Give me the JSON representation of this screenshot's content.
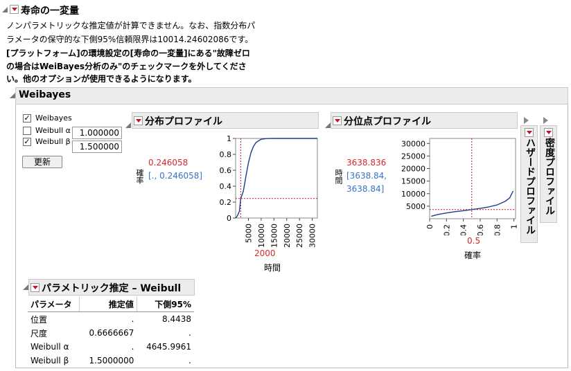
{
  "report": {
    "title": "寿命の一変量",
    "message_lines": [
      "ノンパラメトリックな推定値が計算できません。なお、指数分布パ",
      "ラメータの保守的な下側95%信頼限界は10014.24602086です。",
      "[プラットフォーム]の環境設定の[寿命の一変量]にある\"故障ゼロ",
      "の場合はWeiBayes分析のみ\"のチェックマークを外してくださ",
      "い。他のオプションが使用できるようになります。"
    ]
  },
  "weibayes": {
    "title": "Weibayes",
    "checkbox_weibayes": "Weibayes",
    "alpha_label": "Weibull α",
    "alpha_value": "1.000000",
    "beta_label": "Weibull β",
    "beta_value": "1.500000",
    "update_button": "更新"
  },
  "dist_profile": {
    "title": "分布プロファイル",
    "value": "0.246058",
    "interval": "[., 0.246058]",
    "ylabel": "確率",
    "xlabel": "時間",
    "current_x": "2000"
  },
  "quantile_profile": {
    "title": "分位点プロファイル",
    "value": "3638.836",
    "interval_line1": "[3638.84,",
    "interval_line2": "3638.84]",
    "ylabel": "時間",
    "xlabel": "確率",
    "current_x": "0.5"
  },
  "hazard_profile": {
    "title": "ハザードプロファイル"
  },
  "density_profile": {
    "title": "密度プロファイル"
  },
  "param_estimates": {
    "title": "パラメトリック推定 – Weibull",
    "columns": [
      "パラメータ",
      "推定値",
      "下側95%"
    ],
    "rows": [
      [
        "位置",
        ".",
        "8.4438"
      ],
      [
        "尺度",
        "0.6666667",
        "."
      ],
      [
        "Weibull α",
        ".",
        "4645.9961"
      ],
      [
        "Weibull β",
        "1.5000000",
        "."
      ]
    ]
  },
  "chart_data": [
    {
      "type": "line",
      "name": "分布プロファイル",
      "xlabel": "時間",
      "ylabel": "確率",
      "xlim": [
        0,
        32000
      ],
      "ylim": [
        0,
        1
      ],
      "xticks": [
        "5000",
        "10000",
        "15000",
        "20000",
        "25000",
        "30000"
      ],
      "yticks": [
        "0",
        "0.2",
        "0.4",
        "0.6",
        "0.8",
        "1"
      ],
      "crosshair": {
        "x": 2000,
        "y": 0.246058
      },
      "x": [
        0,
        500,
        1000,
        1500,
        2000,
        3000,
        4000,
        5000,
        6000,
        7000,
        8000,
        10000,
        12000,
        15000,
        32000
      ],
      "values": [
        0,
        0.018,
        0.049,
        0.087,
        0.246,
        0.335,
        0.52,
        0.69,
        0.82,
        0.9,
        0.95,
        0.99,
        0.998,
        1,
        1
      ]
    },
    {
      "type": "line",
      "name": "分位点プロファイル",
      "xlabel": "確率",
      "ylabel": "時間",
      "xlim": [
        0,
        1.02
      ],
      "ylim": [
        0,
        32000
      ],
      "xticks": [
        "0",
        "0.2",
        "0.4",
        "0.6",
        "0.8",
        "1"
      ],
      "yticks": [
        "5000",
        "10000",
        "15000",
        "20000",
        "25000",
        "30000"
      ],
      "crosshair": {
        "x": 0.5,
        "y": 3638.836
      },
      "x": [
        0.02,
        0.1,
        0.2,
        0.3,
        0.4,
        0.5,
        0.6,
        0.7,
        0.8,
        0.9,
        0.95,
        0.99
      ],
      "values": [
        1000,
        1700,
        2300,
        2800,
        3200,
        3638,
        4100,
        4700,
        5500,
        7000,
        8300,
        11000
      ]
    }
  ]
}
